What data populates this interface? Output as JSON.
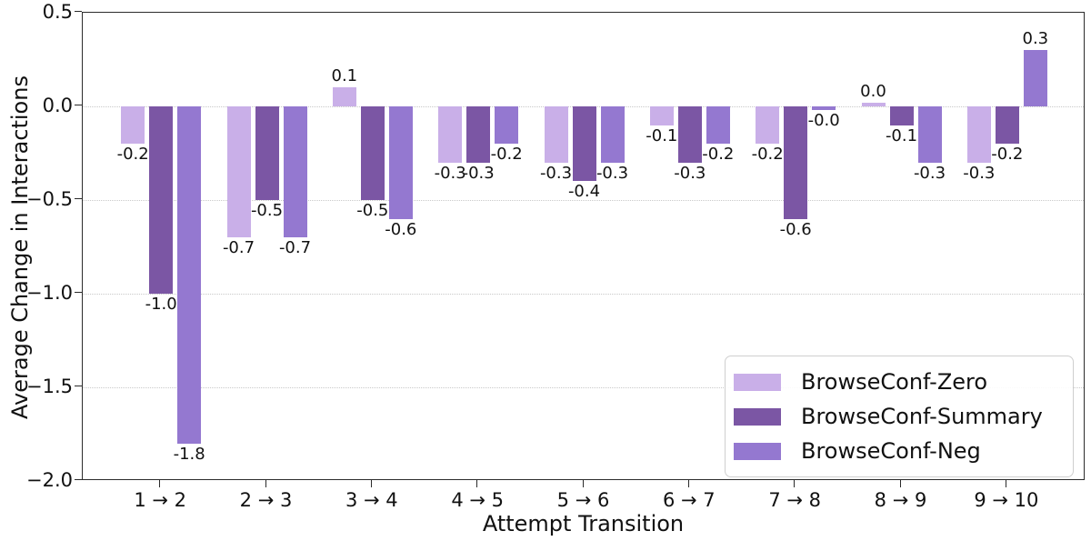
{
  "chart_data": {
    "type": "bar",
    "title": "",
    "xlabel": "Attempt Transition",
    "ylabel": "Average Change in Interactions",
    "categories": [
      "1 → 2",
      "2 → 3",
      "3 → 4",
      "4 → 5",
      "5 → 6",
      "6 → 7",
      "7 → 8",
      "8 → 9",
      "9 → 10"
    ],
    "ylim": [
      -2.0,
      0.5
    ],
    "yticks": [
      {
        "label": "0.5",
        "value": 0.5
      },
      {
        "label": "0.0",
        "value": 0.0
      },
      {
        "label": "−0.5",
        "value": -0.5
      },
      {
        "label": "−1.0",
        "value": -1.0
      },
      {
        "label": "−1.5",
        "value": -1.5
      },
      {
        "label": "−2.0",
        "value": -2.0
      }
    ],
    "grid": "horizontal-dotted",
    "legend_position": "lower-right",
    "series": [
      {
        "name": "BrowseConf-Zero",
        "color": "#c9afe8",
        "values": [
          -0.2,
          -0.7,
          0.1,
          -0.3,
          -0.3,
          -0.1,
          -0.2,
          0.0,
          -0.3
        ],
        "bar_labels": [
          "-0.2",
          "-0.7",
          "0.1",
          "-0.3",
          "-0.3",
          "-0.1",
          "-0.2",
          "0.0",
          "-0.3"
        ]
      },
      {
        "name": "BrowseConf-Summary",
        "color": "#7b56a4",
        "values": [
          -1.0,
          -0.5,
          -0.5,
          -0.3,
          -0.4,
          -0.3,
          -0.6,
          -0.1,
          -0.2
        ],
        "bar_labels": [
          "-1.0",
          "-0.5",
          "-0.5",
          "-0.3",
          "-0.4",
          "-0.3",
          "-0.6",
          "-0.1",
          "-0.2"
        ]
      },
      {
        "name": "BrowseConf-Neg",
        "color": "#9478d0",
        "values": [
          -1.8,
          -0.7,
          -0.6,
          -0.2,
          -0.3,
          -0.2,
          -0.0,
          -0.3,
          0.3
        ],
        "bar_labels": [
          "-1.8",
          "-0.7",
          "-0.6",
          "-0.2",
          "-0.3",
          "-0.2",
          "-0.0",
          "-0.3",
          "0.3"
        ]
      }
    ],
    "colors": {
      "grid": "#c9c9c9",
      "spine": "#2b2b2b",
      "text": "#111111"
    }
  }
}
